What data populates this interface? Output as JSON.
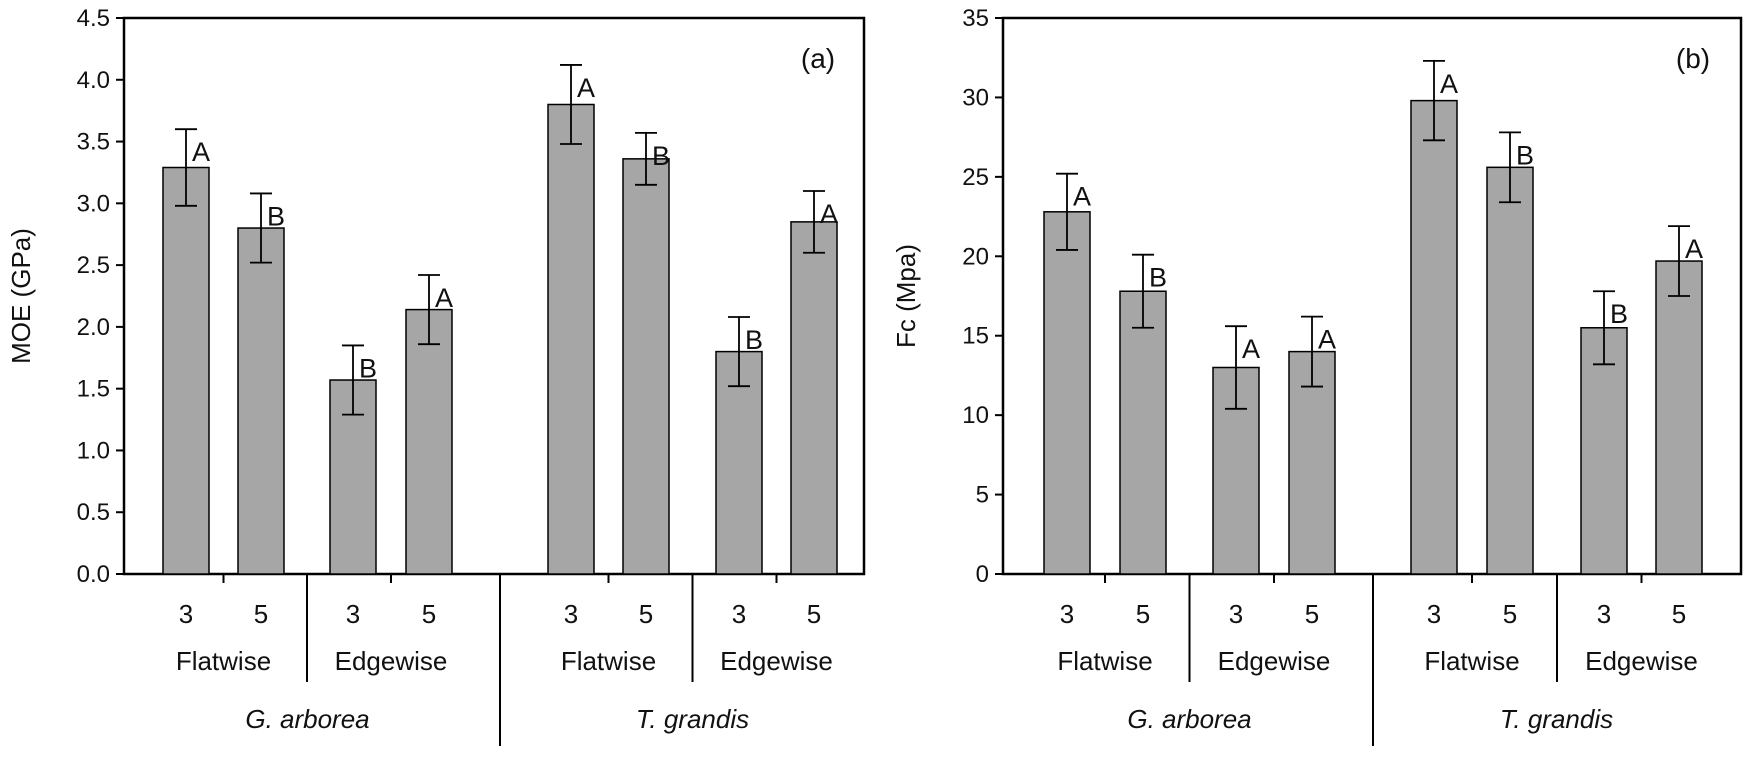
{
  "chart_data": [
    {
      "type": "bar",
      "panel": "(a)",
      "title": "",
      "xlabel": "",
      "ylabel": "MOE (GPa)",
      "ylim": [
        0,
        4.5
      ],
      "yticks": [
        "0.0",
        "0.5",
        "1.0",
        "1.5",
        "2.0",
        "2.5",
        "3.0",
        "3.5",
        "4.0",
        "4.5"
      ],
      "grid": false,
      "species": [
        "G. arborea",
        "T. grandis"
      ],
      "orientations": [
        "Flatwise",
        "Edgewise"
      ],
      "categories": [
        "3",
        "5",
        "3",
        "5",
        "3",
        "5",
        "3",
        "5"
      ],
      "values": [
        3.29,
        2.8,
        1.57,
        2.14,
        3.8,
        3.36,
        1.8,
        2.85
      ],
      "errors": [
        0.31,
        0.28,
        0.28,
        0.28,
        0.32,
        0.21,
        0.28,
        0.25
      ],
      "significance": [
        "A",
        "B",
        "B",
        "A",
        "A",
        "B",
        "B",
        "A"
      ],
      "bar_color": "#a6a6a6"
    },
    {
      "type": "bar",
      "panel": "(b)",
      "title": "",
      "xlabel": "",
      "ylabel": "Fc (Mpa)",
      "ylim": [
        0,
        35
      ],
      "yticks": [
        "0",
        "5",
        "10",
        "15",
        "20",
        "25",
        "30",
        "35"
      ],
      "grid": false,
      "species": [
        "G. arborea",
        "T. grandis"
      ],
      "orientations": [
        "Flatwise",
        "Edgewise"
      ],
      "categories": [
        "3",
        "5",
        "3",
        "5",
        "3",
        "5",
        "3",
        "5"
      ],
      "values": [
        22.8,
        17.8,
        13.0,
        14.0,
        29.8,
        25.6,
        15.5,
        19.7
      ],
      "errors": [
        2.4,
        2.3,
        2.6,
        2.2,
        2.5,
        2.2,
        2.3,
        2.2
      ],
      "significance": [
        "A",
        "B",
        "A",
        "A",
        "A",
        "B",
        "B",
        "A"
      ],
      "bar_color": "#a6a6a6"
    }
  ]
}
